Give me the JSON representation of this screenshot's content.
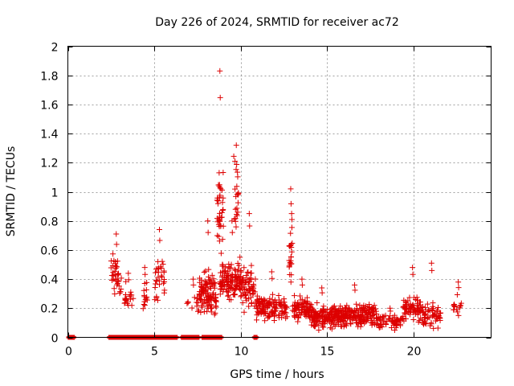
{
  "chart_data": {
    "type": "scatter",
    "title": "Day 226 of 2024, SRMTID for receiver ac72",
    "xlabel": "GPS time / hours",
    "ylabel": "SRMTID / TECUs",
    "xlim": [
      0,
      24.5
    ],
    "ylim": [
      0,
      2
    ],
    "xticks": [
      0,
      5,
      10,
      15,
      20
    ],
    "xtick_labels": [
      "0",
      "5",
      "10",
      "15",
      "20"
    ],
    "yticks": [
      0,
      0.2,
      0.4,
      0.6,
      0.8,
      1,
      1.2,
      1.4,
      1.6,
      1.8,
      2
    ],
    "ytick_labels": [
      "0",
      "0.2",
      "0.4",
      "0.6",
      "0.8",
      "1",
      "1.2",
      "1.4",
      "1.6",
      "1.8",
      "2"
    ],
    "grid": true,
    "marker": "+",
    "color": "#dd0000",
    "zero_segments": [
      [
        0.05,
        0.35
      ],
      [
        2.4,
        6.3
      ],
      [
        6.6,
        7.6
      ],
      [
        7.8,
        8.9
      ],
      [
        10.8,
        10.95
      ]
    ],
    "clusters": [
      {
        "x_range": [
          2.5,
          3.1
        ],
        "y_center": 0.42,
        "spread": 0.12,
        "peak": 0.71,
        "n": 40
      },
      {
        "x_range": [
          3.2,
          3.8
        ],
        "y_center": 0.27,
        "spread": 0.08,
        "peak": 0.44,
        "n": 20
      },
      {
        "x_range": [
          4.3,
          4.6
        ],
        "y_center": 0.28,
        "spread": 0.1,
        "peak": 0.48,
        "n": 14
      },
      {
        "x_range": [
          5.0,
          5.6
        ],
        "y_center": 0.4,
        "spread": 0.12,
        "peak": 0.74,
        "n": 30
      },
      {
        "x_range": [
          6.9,
          7.6
        ],
        "y_center": 0.23,
        "spread": 0.05,
        "peak": 0.4,
        "n": 12
      },
      {
        "x_range": [
          7.6,
          8.6
        ],
        "y_center": 0.3,
        "spread": 0.13,
        "peak": 0.8,
        "n": 110
      },
      {
        "x_range": [
          8.6,
          9.0
        ],
        "y_center": 0.9,
        "spread": 0.3,
        "peak": 1.83,
        "n": 40
      },
      {
        "x_range": [
          8.8,
          10.2
        ],
        "y_center": 0.38,
        "spread": 0.12,
        "peak": 0.8,
        "n": 140
      },
      {
        "x_range": [
          9.6,
          9.9
        ],
        "y_center": 0.95,
        "spread": 0.25,
        "peak": 1.32,
        "n": 22
      },
      {
        "x_range": [
          10.1,
          10.9
        ],
        "y_center": 0.33,
        "spread": 0.12,
        "peak": 0.85,
        "n": 55
      },
      {
        "x_range": [
          10.9,
          12.7
        ],
        "y_center": 0.2,
        "spread": 0.08,
        "peak": 0.45,
        "n": 140
      },
      {
        "x_range": [
          12.8,
          13.0
        ],
        "y_center": 0.55,
        "spread": 0.22,
        "peak": 1.02,
        "n": 24
      },
      {
        "x_range": [
          13.0,
          14.1
        ],
        "y_center": 0.2,
        "spread": 0.08,
        "peak": 0.4,
        "n": 90
      },
      {
        "x_range": [
          14.1,
          15.3
        ],
        "y_center": 0.14,
        "spread": 0.07,
        "peak": 0.34,
        "n": 120
      },
      {
        "x_range": [
          15.3,
          17.9
        ],
        "y_center": 0.15,
        "spread": 0.07,
        "peak": 0.36,
        "n": 240
      },
      {
        "x_range": [
          17.9,
          19.4
        ],
        "y_center": 0.11,
        "spread": 0.05,
        "peak": 0.2,
        "n": 60
      },
      {
        "x_range": [
          19.4,
          20.5
        ],
        "y_center": 0.2,
        "spread": 0.09,
        "peak": 0.48,
        "n": 70
      },
      {
        "x_range": [
          20.5,
          21.6
        ],
        "y_center": 0.15,
        "spread": 0.08,
        "peak": 0.51,
        "n": 60
      },
      {
        "x_range": [
          22.3,
          22.9
        ],
        "y_center": 0.22,
        "spread": 0.08,
        "peak": 0.38,
        "n": 14
      }
    ]
  }
}
